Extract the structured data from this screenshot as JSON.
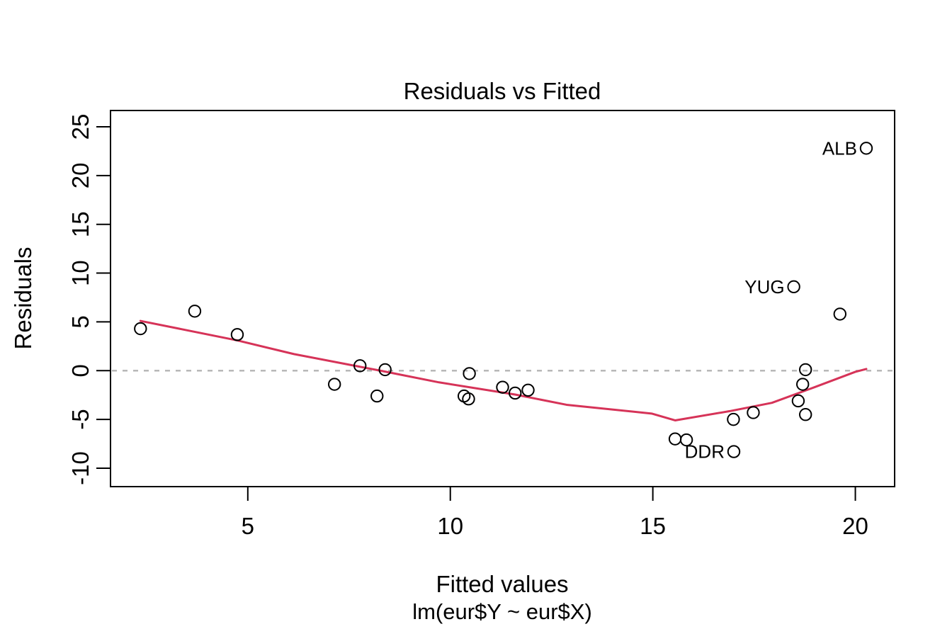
{
  "chart_data": {
    "type": "scatter",
    "title": "Residuals vs Fitted",
    "xlabel": "Fitted values",
    "sub_xlabel": "lm(eur$Y ~ eur$X)",
    "ylabel": "Residuals",
    "x_ticks": [
      5,
      10,
      15,
      20
    ],
    "y_ticks": [
      -10,
      -5,
      0,
      5,
      10,
      15,
      20,
      25
    ],
    "xlim": [
      1.61,
      20.97
    ],
    "ylim": [
      -11.89,
      26.67
    ],
    "grid": false,
    "legend": "none",
    "zero_line_y": 0,
    "points": [
      [
        2.35,
        4.3
      ],
      [
        3.69,
        6.1
      ],
      [
        4.74,
        3.7
      ],
      [
        7.14,
        -1.4
      ],
      [
        7.77,
        0.5
      ],
      [
        8.19,
        -2.6
      ],
      [
        8.39,
        0.1
      ],
      [
        10.34,
        -2.6
      ],
      [
        10.45,
        -2.9
      ],
      [
        10.47,
        -0.3
      ],
      [
        11.29,
        -1.7
      ],
      [
        11.6,
        -2.3
      ],
      [
        11.92,
        -2.0
      ],
      [
        15.55,
        -7.0
      ],
      [
        15.83,
        -7.1
      ],
      [
        16.99,
        -5.0
      ],
      [
        17.0,
        -8.3
      ],
      [
        17.48,
        -4.3
      ],
      [
        18.48,
        8.6
      ],
      [
        18.59,
        -3.1
      ],
      [
        18.7,
        -1.4
      ],
      [
        18.77,
        0.1
      ],
      [
        18.77,
        -4.5
      ],
      [
        19.62,
        5.8
      ],
      [
        20.27,
        22.8
      ]
    ],
    "labeled_points": [
      {
        "label": "ALB",
        "x": 20.27,
        "y": 22.8
      },
      {
        "label": "YUG",
        "x": 18.48,
        "y": 8.6
      },
      {
        "label": "DDR",
        "x": 17.0,
        "y": -8.3
      }
    ],
    "smooth_line": [
      [
        2.35,
        5.1
      ],
      [
        4.74,
        3.1
      ],
      [
        6.14,
        1.7
      ],
      [
        8.27,
        0.0
      ],
      [
        9.72,
        -1.2
      ],
      [
        11.6,
        -2.45
      ],
      [
        12.87,
        -3.5
      ],
      [
        14.97,
        -4.4
      ],
      [
        15.55,
        -5.1
      ],
      [
        16.9,
        -4.15
      ],
      [
        17.94,
        -3.3
      ],
      [
        18.99,
        -1.7
      ],
      [
        20.0,
        -0.12
      ],
      [
        20.27,
        0.17
      ]
    ],
    "colors": {
      "smooth_line": "#d63358",
      "zero_line": "#b4b4b4",
      "point_stroke": "#000000",
      "axis": "#000000",
      "background": "#ffffff"
    }
  }
}
